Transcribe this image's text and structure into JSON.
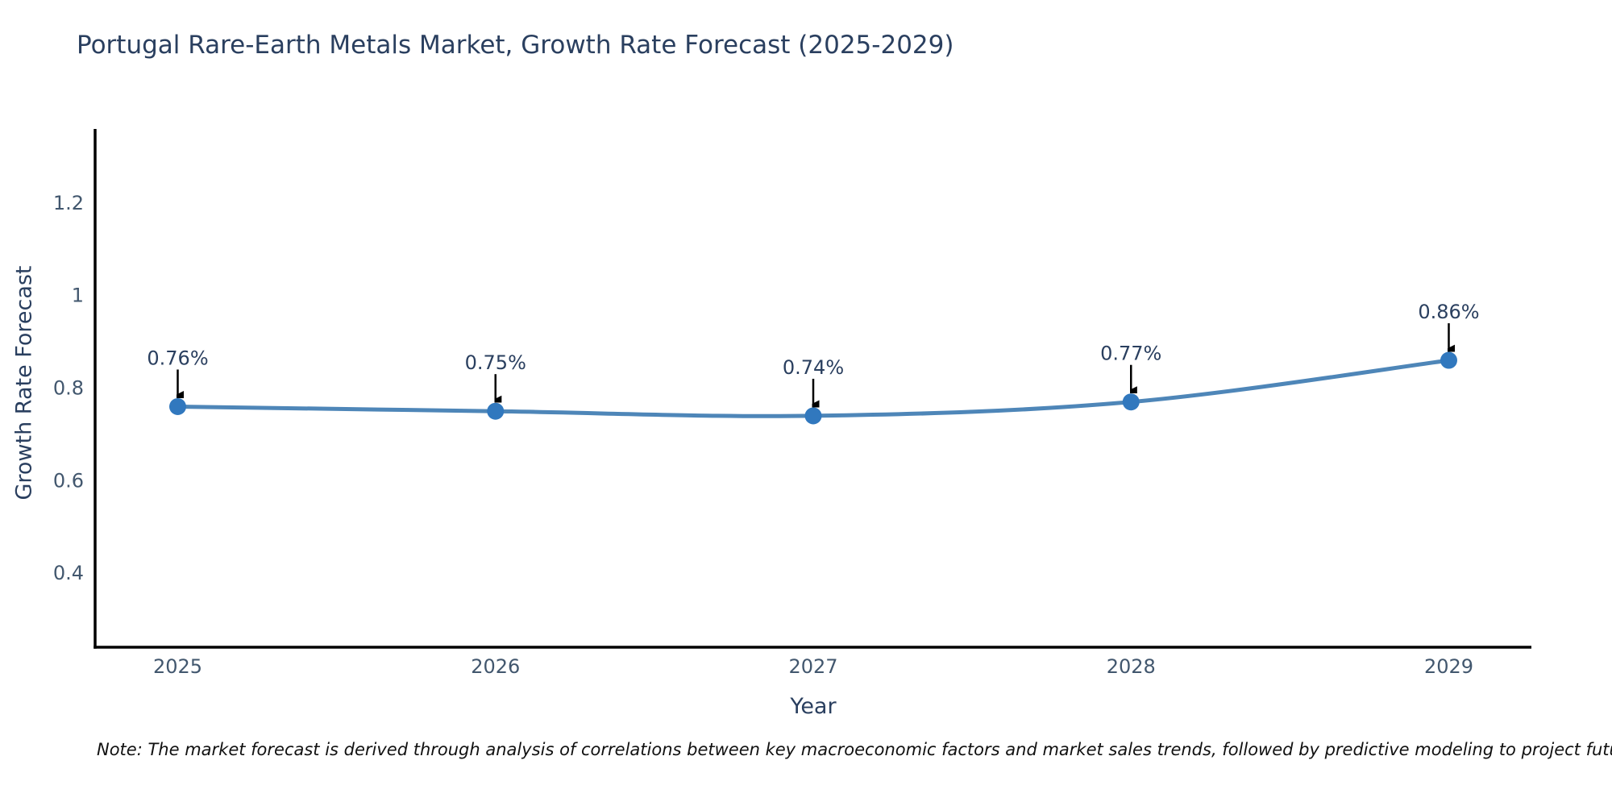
{
  "chart_data": {
    "type": "line",
    "title": "Portugal Rare-Earth Metals Market, Growth Rate Forecast (2025-2029)",
    "xlabel": "Year",
    "ylabel": "Growth Rate Forecast",
    "x": [
      2025,
      2026,
      2027,
      2028,
      2029
    ],
    "values": [
      0.76,
      0.75,
      0.74,
      0.77,
      0.86
    ],
    "point_labels": [
      "0.76%",
      "0.75%",
      "0.74%",
      "0.77%",
      "0.86%"
    ],
    "xtick_labels": [
      "2025",
      "2026",
      "2027",
      "2028",
      "2029"
    ],
    "yticks": [
      0.4,
      0.6,
      0.8,
      1,
      1.2
    ],
    "ytick_labels": [
      "0.4",
      "0.6",
      "0.8",
      "1",
      "1.2"
    ],
    "xlim": [
      2024.74,
      2029.26
    ],
    "ylim": [
      0.24,
      1.36
    ],
    "grid": false,
    "legend_position": "none",
    "line_color": "#4e86b8",
    "marker_color": "#3178be",
    "axis_color": "#000000",
    "tick_label_color": "#42576e",
    "annotation_text_color": "#2a3f5f",
    "arrow_color": "#000000"
  },
  "note": "Note: The market forecast is derived through analysis of correlations between key macroeconomic factors and market sales trends, followed by predictive modeling to project future sales"
}
